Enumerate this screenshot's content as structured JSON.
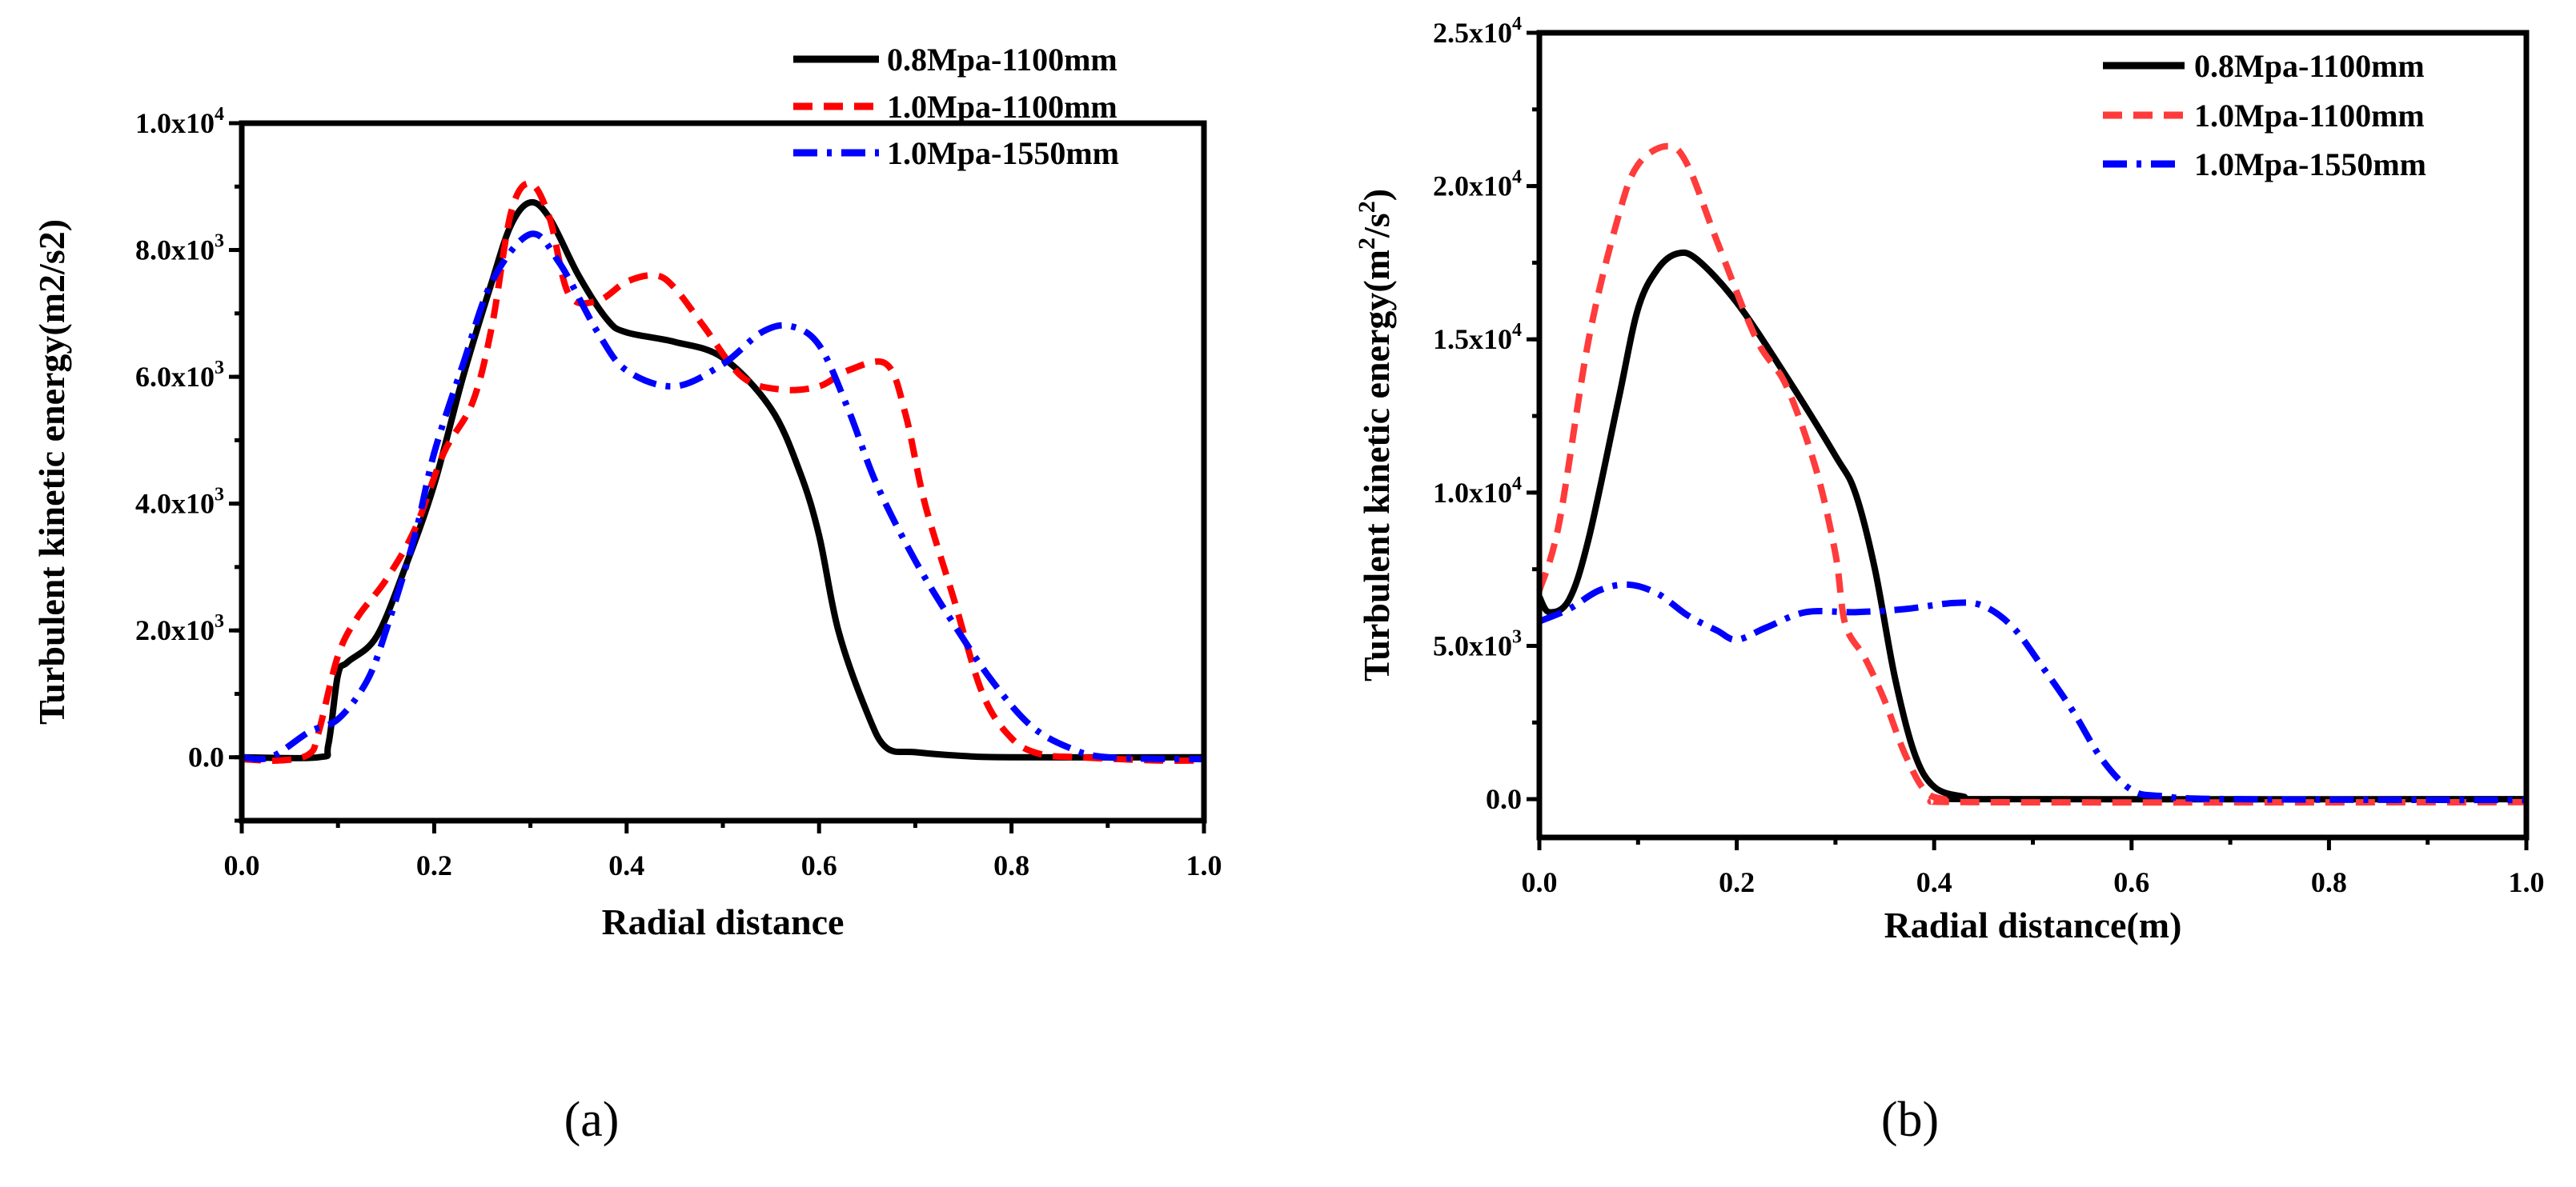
{
  "chart_data": [
    {
      "panel_label": "(a)",
      "type": "line",
      "xlabel": "Radial distance",
      "ylabel": "Turbulent kinetic  energy(m2/s2)",
      "ylabel_sup": false,
      "xlim": [
        0,
        1.0
      ],
      "ylim": [
        -1000,
        10000
      ],
      "xticks": [
        0.0,
        0.2,
        0.4,
        0.6,
        0.8,
        1.0
      ],
      "xtick_labels": [
        "0.0",
        "0.2",
        "0.4",
        "0.6",
        "0.8",
        "1.0"
      ],
      "yticks": [
        0,
        2000,
        4000,
        6000,
        8000,
        10000
      ],
      "ytick_labels": [
        {
          "base": "0.0",
          "exp": ""
        },
        {
          "base": "2.0x10",
          "exp": "3"
        },
        {
          "base": "4.0x10",
          "exp": "3"
        },
        {
          "base": "6.0x10",
          "exp": "3"
        },
        {
          "base": "8.0x10",
          "exp": "3"
        },
        {
          "base": "1.0x10",
          "exp": "4"
        }
      ],
      "legend_position": "top-right",
      "grid": false,
      "series": [
        {
          "name": "0.8Mpa-1100mm",
          "color": "#000000",
          "style": "solid",
          "x": [
            0,
            0.08,
            0.09,
            0.1,
            0.11,
            0.14,
            0.17,
            0.2,
            0.23,
            0.26,
            0.28,
            0.3,
            0.32,
            0.35,
            0.38,
            0.4,
            0.45,
            0.5,
            0.55,
            0.58,
            0.6,
            0.62,
            0.65,
            0.67,
            0.7,
            0.75,
            0.8,
            1.0
          ],
          "y": [
            0,
            0,
            200,
            1300,
            1500,
            1900,
            3000,
            4300,
            6000,
            7500,
            8400,
            8750,
            8500,
            7600,
            6900,
            6700,
            6550,
            6300,
            5500,
            4500,
            3500,
            2000,
            700,
            150,
            80,
            20,
            0,
            0
          ]
        },
        {
          "name": "1.0Mpa-1100mm",
          "color": "#ff0000",
          "style": "dash",
          "x": [
            0,
            0.04,
            0.07,
            0.08,
            0.1,
            0.12,
            0.15,
            0.18,
            0.21,
            0.24,
            0.26,
            0.28,
            0.3,
            0.32,
            0.34,
            0.37,
            0.4,
            0.43,
            0.45,
            0.48,
            0.52,
            0.56,
            0.6,
            0.63,
            0.67,
            0.69,
            0.71,
            0.74,
            0.77,
            0.8,
            0.83,
            0.87,
            0.95,
            1.0
          ],
          "y": [
            -30,
            -50,
            50,
            400,
            1600,
            2200,
            2800,
            3600,
            4800,
            5600,
            6800,
            8600,
            9050,
            8500,
            7300,
            7200,
            7500,
            7600,
            7400,
            6800,
            6000,
            5800,
            5850,
            6100,
            6200,
            5400,
            4000,
            2500,
            1000,
            300,
            50,
            0,
            -50,
            -50
          ]
        },
        {
          "name": "1.0Mpa-1550mm",
          "color": "#0000ff",
          "style": "dashdot",
          "x": [
            0,
            0.03,
            0.07,
            0.1,
            0.13,
            0.15,
            0.18,
            0.2,
            0.23,
            0.26,
            0.3,
            0.33,
            0.37,
            0.4,
            0.45,
            0.5,
            0.54,
            0.57,
            0.6,
            0.63,
            0.66,
            0.7,
            0.74,
            0.78,
            0.82,
            0.86,
            0.9,
            1.0
          ],
          "y": [
            0,
            0,
            400,
            600,
            1200,
            2000,
            3500,
            4800,
            6200,
            7500,
            8250,
            7800,
            6700,
            6100,
            5850,
            6200,
            6700,
            6800,
            6500,
            5500,
            4300,
            3100,
            2100,
            1200,
            500,
            150,
            0,
            -30
          ]
        }
      ]
    },
    {
      "panel_label": "(b)",
      "type": "line",
      "xlabel": "Radial distance(m)",
      "ylabel": "Turbulent kinetic energy(m",
      "ylabel_sup": true,
      "ylabel_mid": "/s",
      "ylabel_end": ")",
      "ylabel_exp": "2",
      "xlim": [
        0,
        1.0
      ],
      "ylim": [
        -1250,
        25000
      ],
      "xticks": [
        0.0,
        0.2,
        0.4,
        0.6,
        0.8,
        1.0
      ],
      "xtick_labels": [
        "0.0",
        "0.2",
        "0.4",
        "0.6",
        "0.8",
        "1.0"
      ],
      "yticks": [
        0,
        5000,
        10000,
        15000,
        20000,
        25000
      ],
      "ytick_labels": [
        {
          "base": "0.0",
          "exp": ""
        },
        {
          "base": "5.0x10",
          "exp": "3"
        },
        {
          "base": "1.0x10",
          "exp": "4"
        },
        {
          "base": "1.5x10",
          "exp": "4"
        },
        {
          "base": "2.0x10",
          "exp": "4"
        },
        {
          "base": "2.5x10",
          "exp": "4"
        }
      ],
      "legend_position": "top-right",
      "grid": false,
      "series": [
        {
          "name": "0.8Mpa-1100mm",
          "color": "#000000",
          "style": "solid",
          "x": [
            0,
            0.01,
            0.03,
            0.05,
            0.08,
            0.1,
            0.12,
            0.14,
            0.16,
            0.2,
            0.25,
            0.3,
            0.32,
            0.34,
            0.36,
            0.38,
            0.4,
            0.43,
            0.46,
            1.0
          ],
          "y": [
            6600,
            6100,
            6500,
            8500,
            13000,
            16000,
            17300,
            17800,
            17600,
            16200,
            13800,
            11200,
            10000,
            7500,
            4000,
            1500,
            400,
            80,
            0,
            0
          ]
        },
        {
          "name": "1.0Mpa-1100mm",
          "color": "#ff3b3b",
          "style": "dash",
          "x": [
            0,
            0.02,
            0.05,
            0.08,
            0.1,
            0.13,
            0.15,
            0.18,
            0.22,
            0.25,
            0.28,
            0.3,
            0.31,
            0.33,
            0.35,
            0.37,
            0.39,
            0.41,
            0.45,
            1.0
          ],
          "y": [
            6800,
            9000,
            15000,
            19000,
            20700,
            21300,
            20700,
            18200,
            15000,
            13500,
            10800,
            8000,
            5700,
            4600,
            3200,
            1500,
            300,
            0,
            -100,
            -100
          ]
        },
        {
          "name": "1.0Mpa-1550mm",
          "color": "#0000ff",
          "style": "dashdot",
          "x": [
            0,
            0.03,
            0.06,
            0.09,
            0.12,
            0.15,
            0.18,
            0.2,
            0.23,
            0.27,
            0.32,
            0.37,
            0.42,
            0.45,
            0.48,
            0.51,
            0.54,
            0.57,
            0.6,
            0.63,
            0.7,
            1.0
          ],
          "y": [
            5800,
            6200,
            6800,
            7000,
            6700,
            6000,
            5500,
            5200,
            5600,
            6100,
            6100,
            6200,
            6400,
            6300,
            5600,
            4300,
            2900,
            1300,
            300,
            100,
            0,
            -30
          ]
        }
      ]
    }
  ]
}
